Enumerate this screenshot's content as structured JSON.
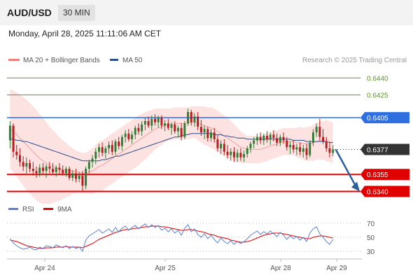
{
  "header": {
    "symbol": "AUD/USD",
    "interval": "30 MIN",
    "datetime": "Monday, April 28, 2025 11:11:06 AM CET",
    "copyright": "Research © 2025 Trading Central"
  },
  "legend_main": [
    {
      "label": "MA 20 + Bollinger Bands",
      "color": "#f08080"
    },
    {
      "label": "MA 50",
      "color": "#2c4f8c"
    }
  ],
  "legend_rsi": [
    {
      "label": "RSI",
      "color": "#5b7fd6"
    },
    {
      "label": "9MA",
      "color": "#e00000"
    }
  ],
  "colors": {
    "bull": "#2e7d32",
    "bear": "#b71c1c",
    "resistance": "#2f6fe0",
    "support": "#e00000",
    "target": "#5a9a1a",
    "bands": "#fde2e2",
    "ma20": "#f4a0a0",
    "ma50": "#2c4f8c",
    "arrow": "#2a5fa0",
    "current": "#333333"
  },
  "chart_data": {
    "type": "candlestick",
    "x_ticks": [
      "Apr 24",
      "Apr 25",
      "Apr 28",
      "Apr 29"
    ],
    "price_levels": [
      {
        "value": 0.644,
        "label": "0.6440",
        "kind": "target"
      },
      {
        "value": 0.6425,
        "label": "0.6425",
        "kind": "target"
      },
      {
        "value": 0.6405,
        "label": "0.6405",
        "kind": "resistance"
      },
      {
        "value": 0.6377,
        "label": "0.6377",
        "kind": "current"
      },
      {
        "value": 0.6355,
        "label": "0.6355",
        "kind": "support"
      },
      {
        "value": 0.634,
        "label": "0.6340",
        "kind": "support"
      }
    ],
    "price_range": [
      0.6336,
      0.6447
    ],
    "projection": {
      "from": 0.6377,
      "to": 0.634
    },
    "candles": [
      [
        0.6385,
        0.6402,
        0.6378,
        0.6398
      ],
      [
        0.6398,
        0.64,
        0.637,
        0.6375
      ],
      [
        0.6375,
        0.6381,
        0.6368,
        0.6372
      ],
      [
        0.6372,
        0.6378,
        0.6362,
        0.6366
      ],
      [
        0.6366,
        0.6371,
        0.6358,
        0.6362
      ],
      [
        0.6362,
        0.637,
        0.6356,
        0.6365
      ],
      [
        0.6365,
        0.6368,
        0.6357,
        0.636
      ],
      [
        0.636,
        0.6366,
        0.6354,
        0.6358
      ],
      [
        0.6358,
        0.6362,
        0.6352,
        0.6356
      ],
      [
        0.6356,
        0.6364,
        0.6353,
        0.6361
      ],
      [
        0.6361,
        0.6365,
        0.6355,
        0.6358
      ],
      [
        0.6358,
        0.6364,
        0.6352,
        0.6362
      ],
      [
        0.6362,
        0.6366,
        0.6356,
        0.636
      ],
      [
        0.636,
        0.6365,
        0.6355,
        0.6357
      ],
      [
        0.6357,
        0.6363,
        0.6353,
        0.6361
      ],
      [
        0.6361,
        0.6365,
        0.6355,
        0.6359
      ],
      [
        0.6359,
        0.6363,
        0.6354,
        0.6356
      ],
      [
        0.6356,
        0.6362,
        0.6353,
        0.636
      ],
      [
        0.636,
        0.6362,
        0.635,
        0.6352
      ],
      [
        0.6352,
        0.6359,
        0.6349,
        0.6356
      ],
      [
        0.6356,
        0.636,
        0.6348,
        0.6351
      ],
      [
        0.6351,
        0.6357,
        0.6348,
        0.6354
      ],
      [
        0.6354,
        0.6358,
        0.634,
        0.6345
      ],
      [
        0.6345,
        0.6362,
        0.6342,
        0.636
      ],
      [
        0.636,
        0.6368,
        0.6356,
        0.6366
      ],
      [
        0.6366,
        0.6372,
        0.6361,
        0.6369
      ],
      [
        0.6369,
        0.6378,
        0.6364,
        0.6375
      ],
      [
        0.6375,
        0.6382,
        0.637,
        0.6379
      ],
      [
        0.6379,
        0.6383,
        0.6371,
        0.6374
      ],
      [
        0.6374,
        0.638,
        0.6369,
        0.6378
      ],
      [
        0.6378,
        0.6384,
        0.6373,
        0.6381
      ],
      [
        0.6381,
        0.6385,
        0.6372,
        0.6375
      ],
      [
        0.6375,
        0.6386,
        0.6372,
        0.6384
      ],
      [
        0.6384,
        0.6388,
        0.6377,
        0.638
      ],
      [
        0.638,
        0.639,
        0.6376,
        0.6388
      ],
      [
        0.6388,
        0.6394,
        0.6383,
        0.6391
      ],
      [
        0.6391,
        0.6395,
        0.6384,
        0.6386
      ],
      [
        0.6386,
        0.6393,
        0.6382,
        0.639
      ],
      [
        0.639,
        0.6398,
        0.6386,
        0.6396
      ],
      [
        0.6396,
        0.64,
        0.639,
        0.6393
      ],
      [
        0.6393,
        0.6402,
        0.6389,
        0.6399
      ],
      [
        0.6399,
        0.6405,
        0.6394,
        0.6402
      ],
      [
        0.6402,
        0.6406,
        0.6396,
        0.6398
      ],
      [
        0.6398,
        0.6407,
        0.6394,
        0.6404
      ],
      [
        0.6404,
        0.6408,
        0.6398,
        0.6401
      ],
      [
        0.6401,
        0.6407,
        0.6396,
        0.6405
      ],
      [
        0.6405,
        0.6407,
        0.6395,
        0.6398
      ],
      [
        0.6398,
        0.6403,
        0.6393,
        0.64
      ],
      [
        0.64,
        0.6404,
        0.6394,
        0.6396
      ],
      [
        0.6396,
        0.6401,
        0.639,
        0.6399
      ],
      [
        0.6399,
        0.6402,
        0.6391,
        0.6393
      ],
      [
        0.6393,
        0.6398,
        0.6388,
        0.6396
      ],
      [
        0.6396,
        0.64,
        0.6385,
        0.6388
      ],
      [
        0.6388,
        0.6402,
        0.6386,
        0.64
      ],
      [
        0.64,
        0.6413,
        0.6398,
        0.641
      ],
      [
        0.641,
        0.6412,
        0.6398,
        0.6401
      ],
      [
        0.6401,
        0.6409,
        0.6397,
        0.6406
      ],
      [
        0.6406,
        0.641,
        0.6394,
        0.6397
      ],
      [
        0.6397,
        0.6403,
        0.6389,
        0.6392
      ],
      [
        0.6392,
        0.6398,
        0.6386,
        0.6395
      ],
      [
        0.6395,
        0.6397,
        0.6384,
        0.6387
      ],
      [
        0.6387,
        0.6395,
        0.6384,
        0.6392
      ],
      [
        0.6392,
        0.6396,
        0.6383,
        0.6386
      ],
      [
        0.6386,
        0.639,
        0.6375,
        0.6378
      ],
      [
        0.6378,
        0.6385,
        0.6373,
        0.6382
      ],
      [
        0.6382,
        0.6386,
        0.6372,
        0.6375
      ],
      [
        0.6375,
        0.6381,
        0.6369,
        0.6372
      ],
      [
        0.6372,
        0.6378,
        0.6367,
        0.6375
      ],
      [
        0.6375,
        0.6379,
        0.6366,
        0.637
      ],
      [
        0.637,
        0.6377,
        0.6366,
        0.6374
      ],
      [
        0.6374,
        0.6378,
        0.6367,
        0.637
      ],
      [
        0.637,
        0.6376,
        0.6366,
        0.6373
      ],
      [
        0.6373,
        0.638,
        0.637,
        0.6378
      ],
      [
        0.6378,
        0.6384,
        0.6374,
        0.6382
      ],
      [
        0.6382,
        0.6388,
        0.6378,
        0.6385
      ],
      [
        0.6385,
        0.6391,
        0.6381,
        0.6388
      ],
      [
        0.6388,
        0.6392,
        0.6382,
        0.6385
      ],
      [
        0.6385,
        0.6391,
        0.6381,
        0.6389
      ],
      [
        0.6389,
        0.6393,
        0.6383,
        0.6386
      ],
      [
        0.6386,
        0.6392,
        0.6381,
        0.639
      ],
      [
        0.639,
        0.6394,
        0.6384,
        0.6387
      ],
      [
        0.6387,
        0.6391,
        0.638,
        0.6383
      ],
      [
        0.6383,
        0.639,
        0.638,
        0.6388
      ],
      [
        0.6388,
        0.6392,
        0.6382,
        0.6385
      ],
      [
        0.6385,
        0.6388,
        0.6376,
        0.6379
      ],
      [
        0.6379,
        0.6384,
        0.6373,
        0.6381
      ],
      [
        0.6381,
        0.6385,
        0.6374,
        0.6377
      ],
      [
        0.6377,
        0.6382,
        0.6372,
        0.6379
      ],
      [
        0.6379,
        0.6383,
        0.6372,
        0.6375
      ],
      [
        0.6375,
        0.6381,
        0.637,
        0.6378
      ],
      [
        0.6378,
        0.6382,
        0.6368,
        0.6372
      ],
      [
        0.6372,
        0.6385,
        0.637,
        0.6383
      ],
      [
        0.6383,
        0.6395,
        0.638,
        0.6392
      ],
      [
        0.6392,
        0.64,
        0.6388,
        0.6397
      ],
      [
        0.6397,
        0.6404,
        0.6385,
        0.6388
      ],
      [
        0.6388,
        0.6395,
        0.6382,
        0.6384
      ],
      [
        0.6384,
        0.6388,
        0.6375,
        0.6378
      ],
      [
        0.6378,
        0.6383,
        0.637,
        0.6374
      ],
      [
        0.6374,
        0.6381,
        0.6371,
        0.6377
      ]
    ],
    "ma20": [
      0.6395,
      0.6393,
      0.639,
      0.6387,
      0.6384,
      0.6381,
      0.6378,
      0.6375,
      0.6372,
      0.6369,
      0.6367,
      0.6365,
      0.6363,
      0.6362,
      0.6361,
      0.636,
      0.6359,
      0.6359,
      0.6358,
      0.6358,
      0.6357,
      0.6357,
      0.6356,
      0.6356,
      0.6357,
      0.6358,
      0.636,
      0.6362,
      0.6363,
      0.6365,
      0.6367,
      0.6369,
      0.6371,
      0.6373,
      0.6375,
      0.6377,
      0.6379,
      0.6381,
      0.6383,
      0.6385,
      0.6387,
      0.6389,
      0.6391,
      0.6393,
      0.6395,
      0.6396,
      0.6397,
      0.6398,
      0.6399,
      0.6399,
      0.64,
      0.64,
      0.64,
      0.64,
      0.64,
      0.6401,
      0.6401,
      0.64,
      0.6399,
      0.6398,
      0.6397,
      0.6396,
      0.6395,
      0.6393,
      0.6391,
      0.6389,
      0.6387,
      0.6385,
      0.6383,
      0.6381,
      0.6379,
      0.6378,
      0.6377,
      0.6377,
      0.6377,
      0.6377,
      0.6377,
      0.6378,
      0.6379,
      0.638,
      0.6381,
      0.6382,
      0.6383,
      0.6384,
      0.6384,
      0.6384,
      0.6384,
      0.6383,
      0.6383,
      0.6382,
      0.6382,
      0.6382,
      0.6383,
      0.6384,
      0.6385,
      0.6385,
      0.6385,
      0.6384,
      0.6383
    ],
    "ma50": [
      0.6386,
      0.6386,
      0.6385,
      0.6385,
      0.6384,
      0.6384,
      0.6383,
      0.6382,
      0.6381,
      0.638,
      0.6379,
      0.6378,
      0.6377,
      0.6376,
      0.6375,
      0.6374,
      0.6373,
      0.6372,
      0.6371,
      0.637,
      0.6369,
      0.6368,
      0.6367,
      0.6367,
      0.6367,
      0.6367,
      0.6367,
      0.6367,
      0.6368,
      0.6368,
      0.6369,
      0.637,
      0.6371,
      0.6371,
      0.6372,
      0.6373,
      0.6374,
      0.6375,
      0.6376,
      0.6377,
      0.6378,
      0.6379,
      0.638,
      0.6381,
      0.6382,
      0.6383,
      0.6384,
      0.6385,
      0.6386,
      0.6387,
      0.6388,
      0.6388,
      0.6389,
      0.639,
      0.639,
      0.6391,
      0.6391,
      0.6391,
      0.6391,
      0.6391,
      0.6391,
      0.6391,
      0.639,
      0.639,
      0.639,
      0.6389,
      0.6389,
      0.6388,
      0.6388,
      0.6387,
      0.6387,
      0.6387,
      0.6386,
      0.6386,
      0.6386,
      0.6386,
      0.6386,
      0.6386,
      0.6386,
      0.6386,
      0.6386,
      0.6386,
      0.6386,
      0.6386,
      0.6386,
      0.6386,
      0.6385,
      0.6385,
      0.6385,
      0.6385,
      0.6384,
      0.6384,
      0.6384,
      0.6384,
      0.6384,
      0.6384,
      0.6384,
      0.6383,
      0.6383
    ],
    "band_half_width": [
      0.0035,
      0.0036,
      0.0037,
      0.0038,
      0.0039,
      0.004,
      0.004,
      0.004,
      0.004,
      0.0039,
      0.0038,
      0.0036,
      0.0034,
      0.0032,
      0.003,
      0.0028,
      0.0026,
      0.0024,
      0.0022,
      0.002,
      0.0019,
      0.0018,
      0.0018,
      0.0018,
      0.0019,
      0.002,
      0.0021,
      0.0022,
      0.0022,
      0.0022,
      0.0022,
      0.0022,
      0.0022,
      0.0022,
      0.0022,
      0.0022,
      0.0022,
      0.0022,
      0.0022,
      0.0022,
      0.0021,
      0.0021,
      0.002,
      0.0019,
      0.0018,
      0.0017,
      0.0016,
      0.0015,
      0.0014,
      0.0014,
      0.0014,
      0.0014,
      0.0014,
      0.0014,
      0.0014,
      0.0014,
      0.0014,
      0.0015,
      0.0016,
      0.0017,
      0.0017,
      0.0018,
      0.0018,
      0.0018,
      0.0018,
      0.0018,
      0.0018,
      0.0017,
      0.0016,
      0.0015,
      0.0014,
      0.0013,
      0.0012,
      0.0012,
      0.0012,
      0.0012,
      0.0012,
      0.0012,
      0.0012,
      0.0012,
      0.0012,
      0.0012,
      0.0012,
      0.0012,
      0.0012,
      0.0012,
      0.0012,
      0.0013,
      0.0014,
      0.0014,
      0.0015,
      0.0015,
      0.0016,
      0.0016,
      0.0017,
      0.0017,
      0.0018,
      0.0018,
      0.0018
    ],
    "rsi": {
      "levels": [
        70,
        50,
        30
      ],
      "range": [
        25,
        75
      ],
      "rsi": [
        48,
        42,
        38,
        35,
        33,
        34,
        36,
        33,
        32,
        36,
        34,
        38,
        37,
        35,
        39,
        37,
        35,
        38,
        34,
        37,
        34,
        36,
        30,
        46,
        52,
        55,
        58,
        61,
        56,
        59,
        62,
        57,
        64,
        58,
        63,
        66,
        60,
        64,
        67,
        62,
        66,
        69,
        64,
        68,
        64,
        67,
        60,
        63,
        58,
        62,
        56,
        60,
        53,
        63,
        68,
        58,
        62,
        54,
        50,
        55,
        48,
        53,
        47,
        42,
        49,
        44,
        41,
        45,
        40,
        44,
        41,
        44,
        48,
        53,
        56,
        59,
        54,
        58,
        55,
        59,
        55,
        51,
        57,
        53,
        47,
        52,
        48,
        51,
        46,
        50,
        44,
        56,
        62,
        65,
        55,
        50,
        44,
        40,
        47
      ],
      "ma9": [
        46,
        45,
        44,
        42,
        40,
        38,
        37,
        36,
        35,
        34,
        34,
        35,
        35,
        35,
        36,
        36,
        36,
        37,
        36,
        36,
        36,
        36,
        35,
        37,
        39,
        41,
        44,
        47,
        49,
        51,
        53,
        55,
        57,
        58,
        60,
        61,
        61,
        62,
        63,
        63,
        64,
        65,
        65,
        66,
        66,
        66,
        65,
        65,
        64,
        63,
        62,
        61,
        60,
        60,
        61,
        61,
        60,
        59,
        58,
        57,
        55,
        54,
        53,
        51,
        50,
        49,
        48,
        46,
        45,
        44,
        43,
        43,
        44,
        45,
        47,
        49,
        51,
        53,
        54,
        55,
        56,
        56,
        56,
        55,
        54,
        53,
        52,
        51,
        50,
        49,
        48,
        48,
        50,
        51,
        52,
        52,
        51,
        50,
        49
      ]
    }
  }
}
